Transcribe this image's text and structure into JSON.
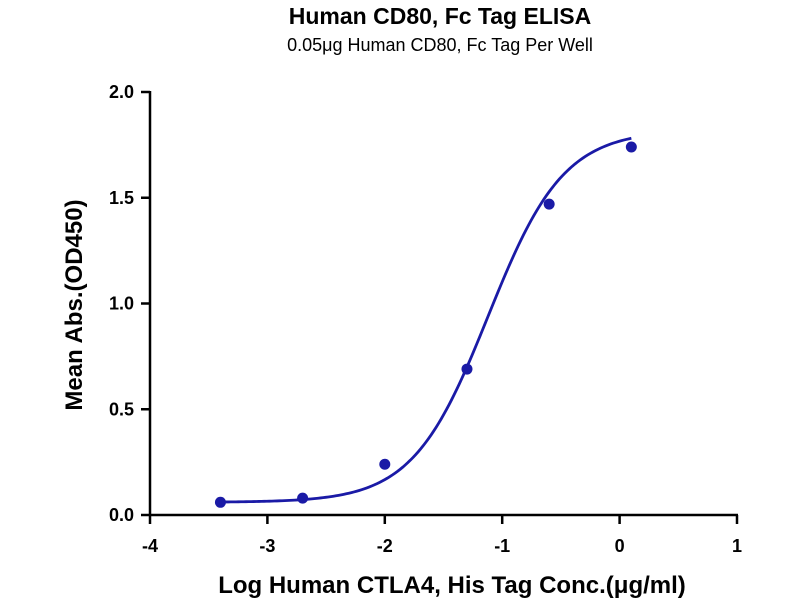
{
  "chart_data": {
    "type": "scatter",
    "title": "Human CD80, Fc Tag ELISA",
    "subtitle": "0.05μg Human CD80, Fc Tag Per Well",
    "xlabel": "Log Human CTLA4, His Tag Conc.(μg/ml)",
    "ylabel": "Mean Abs.(OD450)",
    "xlim": [
      -4,
      1
    ],
    "ylim": [
      0.0,
      2.0
    ],
    "xticks": [
      -4,
      -3,
      -2,
      -1,
      0,
      1
    ],
    "xtick_labels": [
      "-4",
      "-3",
      "-2",
      "-1",
      "0",
      "1"
    ],
    "yticks": [
      0.0,
      0.5,
      1.0,
      1.5,
      2.0
    ],
    "ytick_labels": [
      "0.0",
      "0.5",
      "1.0",
      "1.5",
      "2.0"
    ],
    "grid": false,
    "color": "#1a1aa6",
    "series": [
      {
        "x": [
          -3.4,
          -2.7,
          -2.0,
          -1.3,
          -0.6,
          0.1
        ],
        "y": [
          0.06,
          0.08,
          0.24,
          0.69,
          1.47,
          1.74
        ],
        "fit": {
          "model": "four-parameter logistic",
          "bottom": 0.06,
          "top": 1.82,
          "log_ec50": -1.12,
          "hill_slope": 1.35,
          "x_range": [
            -3.4,
            0.1
          ]
        }
      }
    ]
  }
}
